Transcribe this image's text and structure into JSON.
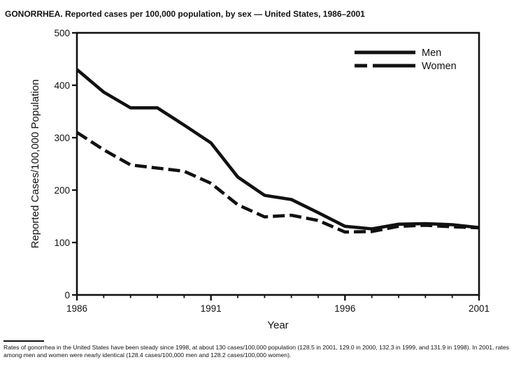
{
  "title": "GONORRHEA. Reported cases per 100,000 population, by sex — United States, 1986–2001",
  "footnote": "Rates of gonorrhea in the United States have been steady since 1998, at about 130 cases/100,000 population (128.5 in 2001, 129.0 in 2000, 132.3 in 1999, and 131.9 in 1998). In 2001, rates among men and women were nearly identical (128.4 cases/100,000 men and 128.2 cases/100,000 women).",
  "colors": {
    "line": "#111111",
    "text": "#111111",
    "background": "#ffffff"
  },
  "chart_data": {
    "type": "line",
    "title": "GONORRHEA. Reported cases per 100,000 population, by sex — United States, 1986–2001",
    "xlabel": "Year",
    "ylabel": "Reported Cases/100,000 Population",
    "x": [
      1986,
      1987,
      1988,
      1989,
      1990,
      1991,
      1992,
      1993,
      1994,
      1995,
      1996,
      1997,
      1998,
      1999,
      2000,
      2001
    ],
    "series": [
      {
        "name": "Men",
        "style": "solid",
        "values": [
          430,
          387,
          357,
          357,
          324,
          290,
          225,
          190,
          182,
          157,
          131,
          126,
          135,
          136,
          134,
          128.4
        ]
      },
      {
        "name": "Women",
        "style": "dashed",
        "values": [
          310,
          277,
          248,
          242,
          236,
          213,
          172,
          149,
          152,
          142,
          120,
          121,
          131,
          133,
          130,
          128.2
        ]
      }
    ],
    "ylim": [
      0,
      500
    ],
    "yticks": [
      0,
      100,
      200,
      300,
      400,
      500
    ],
    "xticks_labeled": [
      1986,
      1991,
      1996,
      2001
    ],
    "grid": false,
    "legend_position": "top-right"
  }
}
